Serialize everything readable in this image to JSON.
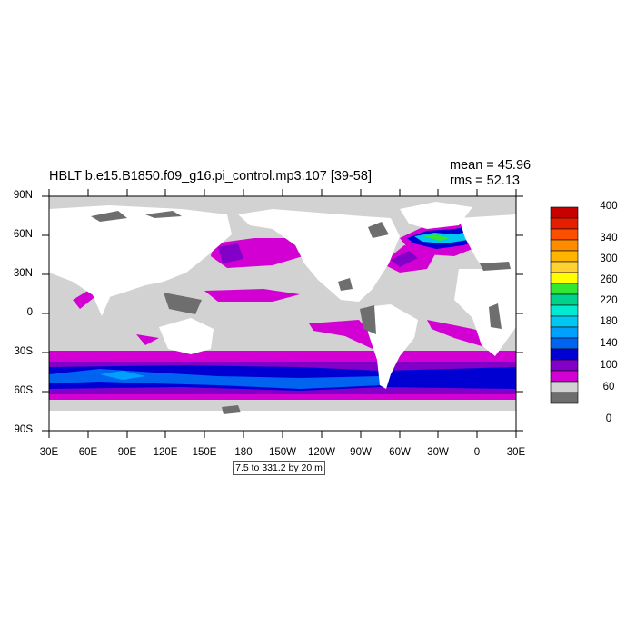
{
  "title": "HBLT b.e15.B1850.f09_g16.pi_control.mp3.107 [39-58]",
  "stats": {
    "mean": "mean = 45.96",
    "rms": "rms = 52.13"
  },
  "lat_labels": [
    "90N",
    "60N",
    "30N",
    "0",
    "30S",
    "60S",
    "90S"
  ],
  "lon_labels": [
    "30E",
    "60E",
    "90E",
    "120E",
    "150E",
    "180",
    "150W",
    "120W",
    "90W",
    "60W",
    "30W",
    "0",
    "30E"
  ],
  "contour_info": "7.5 to 331.2 by 20 m",
  "colorbar": {
    "labels": [
      "400",
      "340",
      "300",
      "260",
      "220",
      "180",
      "140",
      "100",
      "60",
      "0"
    ],
    "colors": [
      "#c80000",
      "#e61e00",
      "#fa5000",
      "#ff8c00",
      "#ffb400",
      "#ffd232",
      "#ffff00",
      "#32e632",
      "#00d28c",
      "#00ebd2",
      "#00c8f0",
      "#00a0ff",
      "#0064f0",
      "#0000d2",
      "#8200c8",
      "#d200d2",
      "#d2d2d2",
      "#6e6e6e"
    ]
  },
  "map_colors": {
    "land": "#ffffff",
    "ocean_low": "#d2d2d2",
    "ocean_zero": "#6e6e6e",
    "band_60": "#d200d2",
    "band_80": "#8200c8",
    "band_100": "#0000d2",
    "band_120": "#0064f0",
    "band_140": "#00a0ff"
  }
}
